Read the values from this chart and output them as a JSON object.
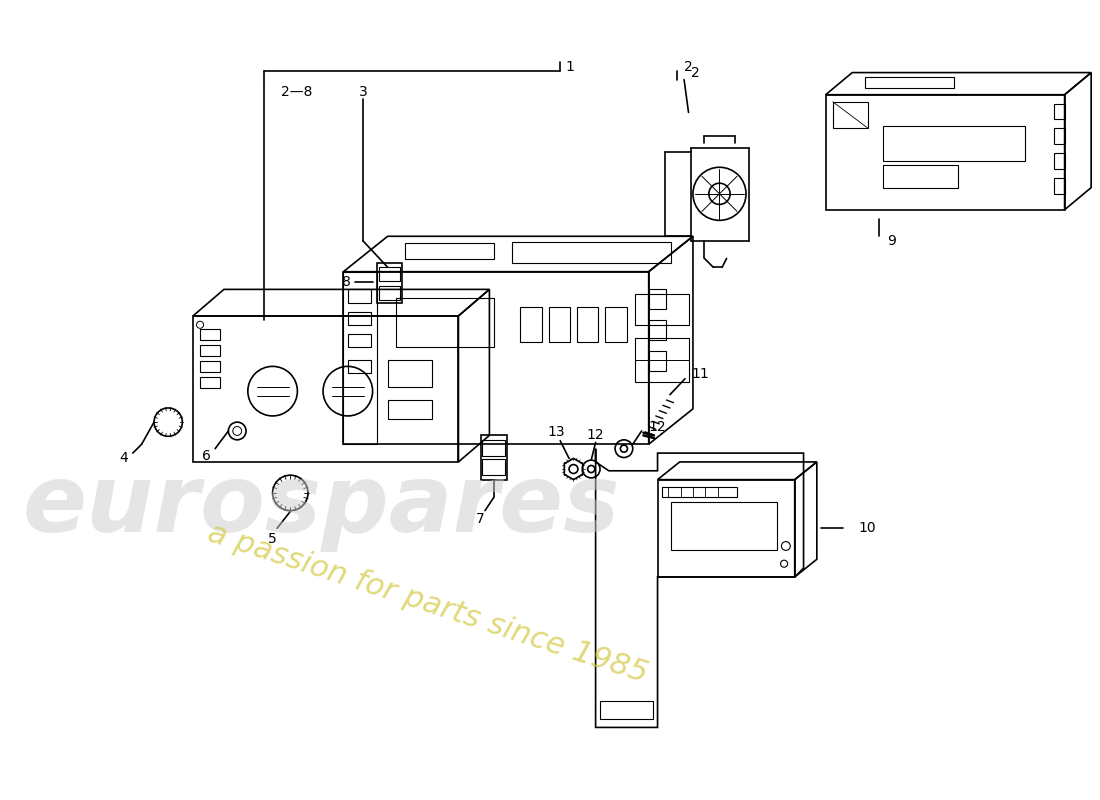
{
  "background_color": "#ffffff",
  "line_color": "#000000",
  "watermark_text1": "eurospares",
  "watermark_text2": "a passion for parts since 1985",
  "watermark_color1": "#cccccc",
  "watermark_color2": "#d4c840",
  "figsize": [
    11.0,
    8.0
  ],
  "dpi": 100
}
